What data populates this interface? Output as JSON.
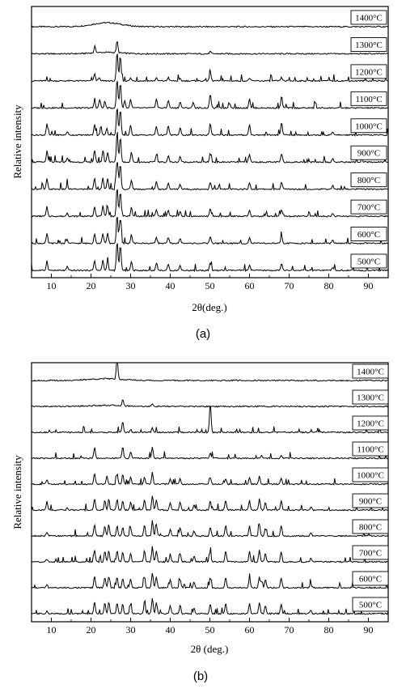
{
  "chart_data": [
    {
      "type": "line",
      "panel_label": "(a)",
      "xlabel": "2θ(deg.)",
      "ylabel": "Relative intensity",
      "xlim": [
        5,
        95
      ],
      "xticks": [
        10,
        20,
        30,
        40,
        50,
        60,
        70,
        80,
        90
      ],
      "xtick_labels": [
        "10",
        "20",
        "30",
        "40",
        "50",
        "60",
        "70",
        "80",
        "90"
      ],
      "grid": false,
      "series": [
        {
          "name": "1400°C",
          "peaks": [],
          "hump": {
            "center": 24,
            "width": 5,
            "height": 0.55
          }
        },
        {
          "name": "1300°C",
          "peaks": [
            [
              21,
              0.9
            ],
            [
              26.6,
              1.6
            ],
            [
              50.1,
              0.3
            ]
          ],
          "hump": {
            "center": 24,
            "width": 5,
            "height": 0.2
          }
        },
        {
          "name": "1200°C",
          "peaks": [
            [
              20.9,
              1.0
            ],
            [
              22,
              0.5
            ],
            [
              26.6,
              4.0
            ],
            [
              27.4,
              3.5
            ],
            [
              30,
              0.4
            ],
            [
              36.5,
              0.4
            ],
            [
              39.5,
              0.5
            ],
            [
              42.5,
              0.3
            ],
            [
              50.1,
              1.2
            ],
            [
              60,
              0.4
            ],
            [
              68.1,
              0.5
            ]
          ]
        },
        {
          "name": "1100°C",
          "peaks": [
            [
              20.9,
              0.9
            ],
            [
              22.2,
              1.2
            ],
            [
              23.5,
              0.9
            ],
            [
              26.6,
              4.0
            ],
            [
              27.4,
              3.5
            ],
            [
              28.5,
              1.0
            ],
            [
              30,
              1.2
            ],
            [
              36.5,
              1.3
            ],
            [
              39.5,
              1.1
            ],
            [
              42.5,
              0.9
            ],
            [
              45.8,
              0.8
            ],
            [
              50.1,
              2.0
            ],
            [
              55,
              0.7
            ],
            [
              60,
              1.3
            ],
            [
              68.1,
              1.6
            ]
          ]
        },
        {
          "name": "1000°C",
          "peaks": [
            [
              8.9,
              1.5
            ],
            [
              14,
              0.5
            ],
            [
              20.9,
              1.5
            ],
            [
              22.5,
              1.2
            ],
            [
              24,
              1.0
            ],
            [
              26.6,
              4.0
            ],
            [
              27.4,
              3.5
            ],
            [
              30,
              1.3
            ],
            [
              36.5,
              1.2
            ],
            [
              39.5,
              1.3
            ],
            [
              42.5,
              1.0
            ],
            [
              50.1,
              1.6
            ],
            [
              60,
              1.5
            ],
            [
              68.1,
              1.8
            ],
            [
              81,
              0.5
            ]
          ]
        },
        {
          "name": "900°C",
          "peaks": [
            [
              8.9,
              1.5
            ],
            [
              14,
              0.6
            ],
            [
              20.9,
              1.6
            ],
            [
              23,
              1.5
            ],
            [
              24.2,
              1.4
            ],
            [
              26.6,
              4.0
            ],
            [
              27.4,
              3.5
            ],
            [
              30.2,
              1.4
            ],
            [
              36.5,
              1.0
            ],
            [
              39.5,
              0.9
            ],
            [
              42.5,
              0.8
            ],
            [
              50.1,
              1.2
            ],
            [
              60,
              1.0
            ],
            [
              68.1,
              1.2
            ],
            [
              81,
              0.5
            ]
          ]
        },
        {
          "name": "800°C",
          "peaks": [
            [
              8.9,
              1.4
            ],
            [
              14,
              0.5
            ],
            [
              20.9,
              1.5
            ],
            [
              23,
              1.5
            ],
            [
              24.2,
              1.4
            ],
            [
              26.6,
              4.0
            ],
            [
              27.4,
              3.5
            ],
            [
              30.2,
              1.3
            ],
            [
              36.5,
              1.0
            ],
            [
              39.5,
              0.8
            ],
            [
              42.5,
              0.7
            ],
            [
              50.1,
              1.0
            ],
            [
              60,
              0.9
            ],
            [
              68.1,
              1.0
            ],
            [
              81,
              0.5
            ]
          ]
        },
        {
          "name": "700°C",
          "peaks": [
            [
              8.9,
              1.3
            ],
            [
              14,
              0.5
            ],
            [
              20.9,
              1.4
            ],
            [
              23,
              1.4
            ],
            [
              24.2,
              1.4
            ],
            [
              26.6,
              4.0
            ],
            [
              27.4,
              3.5
            ],
            [
              30.2,
              1.2
            ],
            [
              36.5,
              0.9
            ],
            [
              39.5,
              0.8
            ],
            [
              42.5,
              0.7
            ],
            [
              50.1,
              1.0
            ],
            [
              60,
              0.8
            ],
            [
              68.1,
              0.9
            ],
            [
              81,
              0.4
            ]
          ]
        },
        {
          "name": "600°C",
          "peaks": [
            [
              8.9,
              1.3
            ],
            [
              14,
              0.5
            ],
            [
              20.9,
              1.4
            ],
            [
              23,
              1.4
            ],
            [
              24.2,
              1.4
            ],
            [
              26.6,
              4.0
            ],
            [
              27.4,
              3.5
            ],
            [
              30.2,
              1.2
            ],
            [
              36.5,
              0.9
            ],
            [
              39.5,
              0.8
            ],
            [
              42.5,
              0.7
            ],
            [
              50.1,
              1.0
            ],
            [
              60,
              0.8
            ],
            [
              68.1,
              0.9
            ],
            [
              81,
              0.4
            ]
          ]
        },
        {
          "name": "500°C",
          "peaks": [
            [
              8.9,
              1.3
            ],
            [
              14,
              0.5
            ],
            [
              20.9,
              1.4
            ],
            [
              23,
              1.4
            ],
            [
              24.2,
              1.4
            ],
            [
              26.6,
              4.0
            ],
            [
              27.4,
              3.5
            ],
            [
              30.2,
              1.2
            ],
            [
              36.5,
              0.9
            ],
            [
              39.5,
              0.8
            ],
            [
              42.5,
              0.7
            ],
            [
              50.1,
              1.0
            ],
            [
              60,
              0.8
            ],
            [
              68.1,
              0.9
            ],
            [
              81,
              0.4
            ]
          ]
        }
      ]
    },
    {
      "type": "line",
      "panel_label": "(b)",
      "xlabel": "2θ (deg.)",
      "ylabel": "Relative intensity",
      "xlim": [
        5,
        95
      ],
      "xticks": [
        10,
        20,
        30,
        40,
        50,
        60,
        70,
        80,
        90
      ],
      "xtick_labels": [
        "10",
        "20",
        "30",
        "40",
        "50",
        "60",
        "70",
        "80",
        "90"
      ],
      "grid": false,
      "series": [
        {
          "name": "1400°C",
          "peaks": [
            [
              26.6,
              3.0
            ]
          ],
          "hump": {
            "center": 24,
            "width": 6,
            "height": 0.25
          }
        },
        {
          "name": "1300°C",
          "peaks": [
            [
              28,
              0.8
            ],
            [
              35.5,
              0.3
            ]
          ],
          "hump": {
            "center": 24,
            "width": 6,
            "height": 0.15
          }
        },
        {
          "name": "1200°C",
          "peaks": [
            [
              28,
              1.5
            ],
            [
              30,
              0.4
            ],
            [
              35.5,
              0.6
            ],
            [
              50.1,
              4.0
            ]
          ]
        },
        {
          "name": "1100°C",
          "peaks": [
            [
              20.9,
              1.5
            ],
            [
              28,
              1.6
            ],
            [
              30,
              0.9
            ],
            [
              35.5,
              1.6
            ],
            [
              50.1,
              0.8
            ],
            [
              63,
              0.4
            ],
            [
              68,
              0.4
            ]
          ]
        },
        {
          "name": "1000°C",
          "peaks": [
            [
              8.9,
              0.6
            ],
            [
              20.9,
              1.5
            ],
            [
              24,
              1.1
            ],
            [
              26.6,
              1.4
            ],
            [
              28,
              1.3
            ],
            [
              30,
              0.9
            ],
            [
              33.5,
              0.9
            ],
            [
              35.5,
              1.6
            ],
            [
              40,
              0.7
            ],
            [
              42.5,
              0.8
            ],
            [
              50.1,
              0.9
            ],
            [
              54,
              0.8
            ],
            [
              60,
              0.9
            ],
            [
              62.5,
              1.1
            ],
            [
              68,
              0.9
            ]
          ]
        },
        {
          "name": "900°C",
          "peaks": [
            [
              8.9,
              1.2
            ],
            [
              14,
              0.3
            ],
            [
              20.9,
              1.6
            ],
            [
              23.5,
              1.3
            ],
            [
              24.5,
              1.5
            ],
            [
              26.6,
              1.5
            ],
            [
              28,
              1.2
            ],
            [
              30,
              1.1
            ],
            [
              33.5,
              1.4
            ],
            [
              35.5,
              2.0
            ],
            [
              36.5,
              1.4
            ],
            [
              40,
              1.0
            ],
            [
              42.5,
              1.1
            ],
            [
              46,
              0.7
            ],
            [
              50.1,
              1.3
            ],
            [
              54,
              1.4
            ],
            [
              60,
              1.3
            ],
            [
              62.5,
              1.5
            ],
            [
              64,
              1.0
            ],
            [
              68,
              1.3
            ],
            [
              75.5,
              0.4
            ]
          ]
        },
        {
          "name": "800°C",
          "peaks": [
            [
              8.9,
              0.5
            ],
            [
              20.9,
              1.6
            ],
            [
              23.5,
              1.4
            ],
            [
              24.5,
              1.6
            ],
            [
              26.6,
              1.5
            ],
            [
              28,
              1.2
            ],
            [
              30,
              1.2
            ],
            [
              33.5,
              1.5
            ],
            [
              35.5,
              2.1
            ],
            [
              36.5,
              1.5
            ],
            [
              40,
              1.0
            ],
            [
              42.5,
              1.2
            ],
            [
              46,
              0.7
            ],
            [
              50.1,
              1.3
            ],
            [
              54,
              1.5
            ],
            [
              60,
              1.4
            ],
            [
              62.5,
              1.6
            ],
            [
              64,
              1.1
            ],
            [
              68,
              1.4
            ],
            [
              75.5,
              0.4
            ]
          ]
        },
        {
          "name": "700°C",
          "peaks": [
            [
              8.9,
              0.4
            ],
            [
              20.9,
              1.6
            ],
            [
              23.5,
              1.5
            ],
            [
              24.5,
              1.6
            ],
            [
              26.6,
              1.5
            ],
            [
              28,
              1.3
            ],
            [
              30,
              1.2
            ],
            [
              33.5,
              1.6
            ],
            [
              35.5,
              2.1
            ],
            [
              36.5,
              1.5
            ],
            [
              40,
              1.1
            ],
            [
              42.5,
              1.2
            ],
            [
              46,
              0.8
            ],
            [
              50.1,
              1.4
            ],
            [
              54,
              1.5
            ],
            [
              60,
              1.4
            ],
            [
              62.5,
              1.6
            ],
            [
              64,
              1.2
            ],
            [
              68,
              1.4
            ],
            [
              75.5,
              0.5
            ]
          ]
        },
        {
          "name": "600°C",
          "peaks": [
            [
              8.9,
              0.4
            ],
            [
              20.9,
              1.6
            ],
            [
              23.5,
              1.5
            ],
            [
              24.5,
              1.6
            ],
            [
              26.6,
              1.5
            ],
            [
              28,
              1.3
            ],
            [
              30,
              1.2
            ],
            [
              33.5,
              1.6
            ],
            [
              35.5,
              2.1
            ],
            [
              36.5,
              1.5
            ],
            [
              40,
              1.1
            ],
            [
              42.5,
              1.2
            ],
            [
              46,
              0.8
            ],
            [
              50.1,
              1.4
            ],
            [
              54,
              1.5
            ],
            [
              60,
              1.4
            ],
            [
              62.5,
              1.6
            ],
            [
              64,
              1.2
            ],
            [
              68,
              1.4
            ],
            [
              75.5,
              0.5
            ]
          ]
        },
        {
          "name": "500°C",
          "peaks": [
            [
              8.9,
              0.4
            ],
            [
              20.9,
              1.6
            ],
            [
              23.5,
              1.5
            ],
            [
              24.5,
              1.6
            ],
            [
              26.6,
              1.5
            ],
            [
              28,
              1.3
            ],
            [
              30,
              1.2
            ],
            [
              33.5,
              1.6
            ],
            [
              35.5,
              2.1
            ],
            [
              36.5,
              1.5
            ],
            [
              40,
              1.1
            ],
            [
              42.5,
              1.2
            ],
            [
              46,
              0.8
            ],
            [
              50.1,
              1.4
            ],
            [
              54,
              1.5
            ],
            [
              60,
              1.4
            ],
            [
              62.5,
              1.6
            ],
            [
              64,
              1.2
            ],
            [
              68,
              1.4
            ],
            [
              75.5,
              0.5
            ]
          ]
        }
      ]
    }
  ],
  "colors": {
    "trace": "#000000",
    "label_1200_b": "#1a2a6c"
  }
}
